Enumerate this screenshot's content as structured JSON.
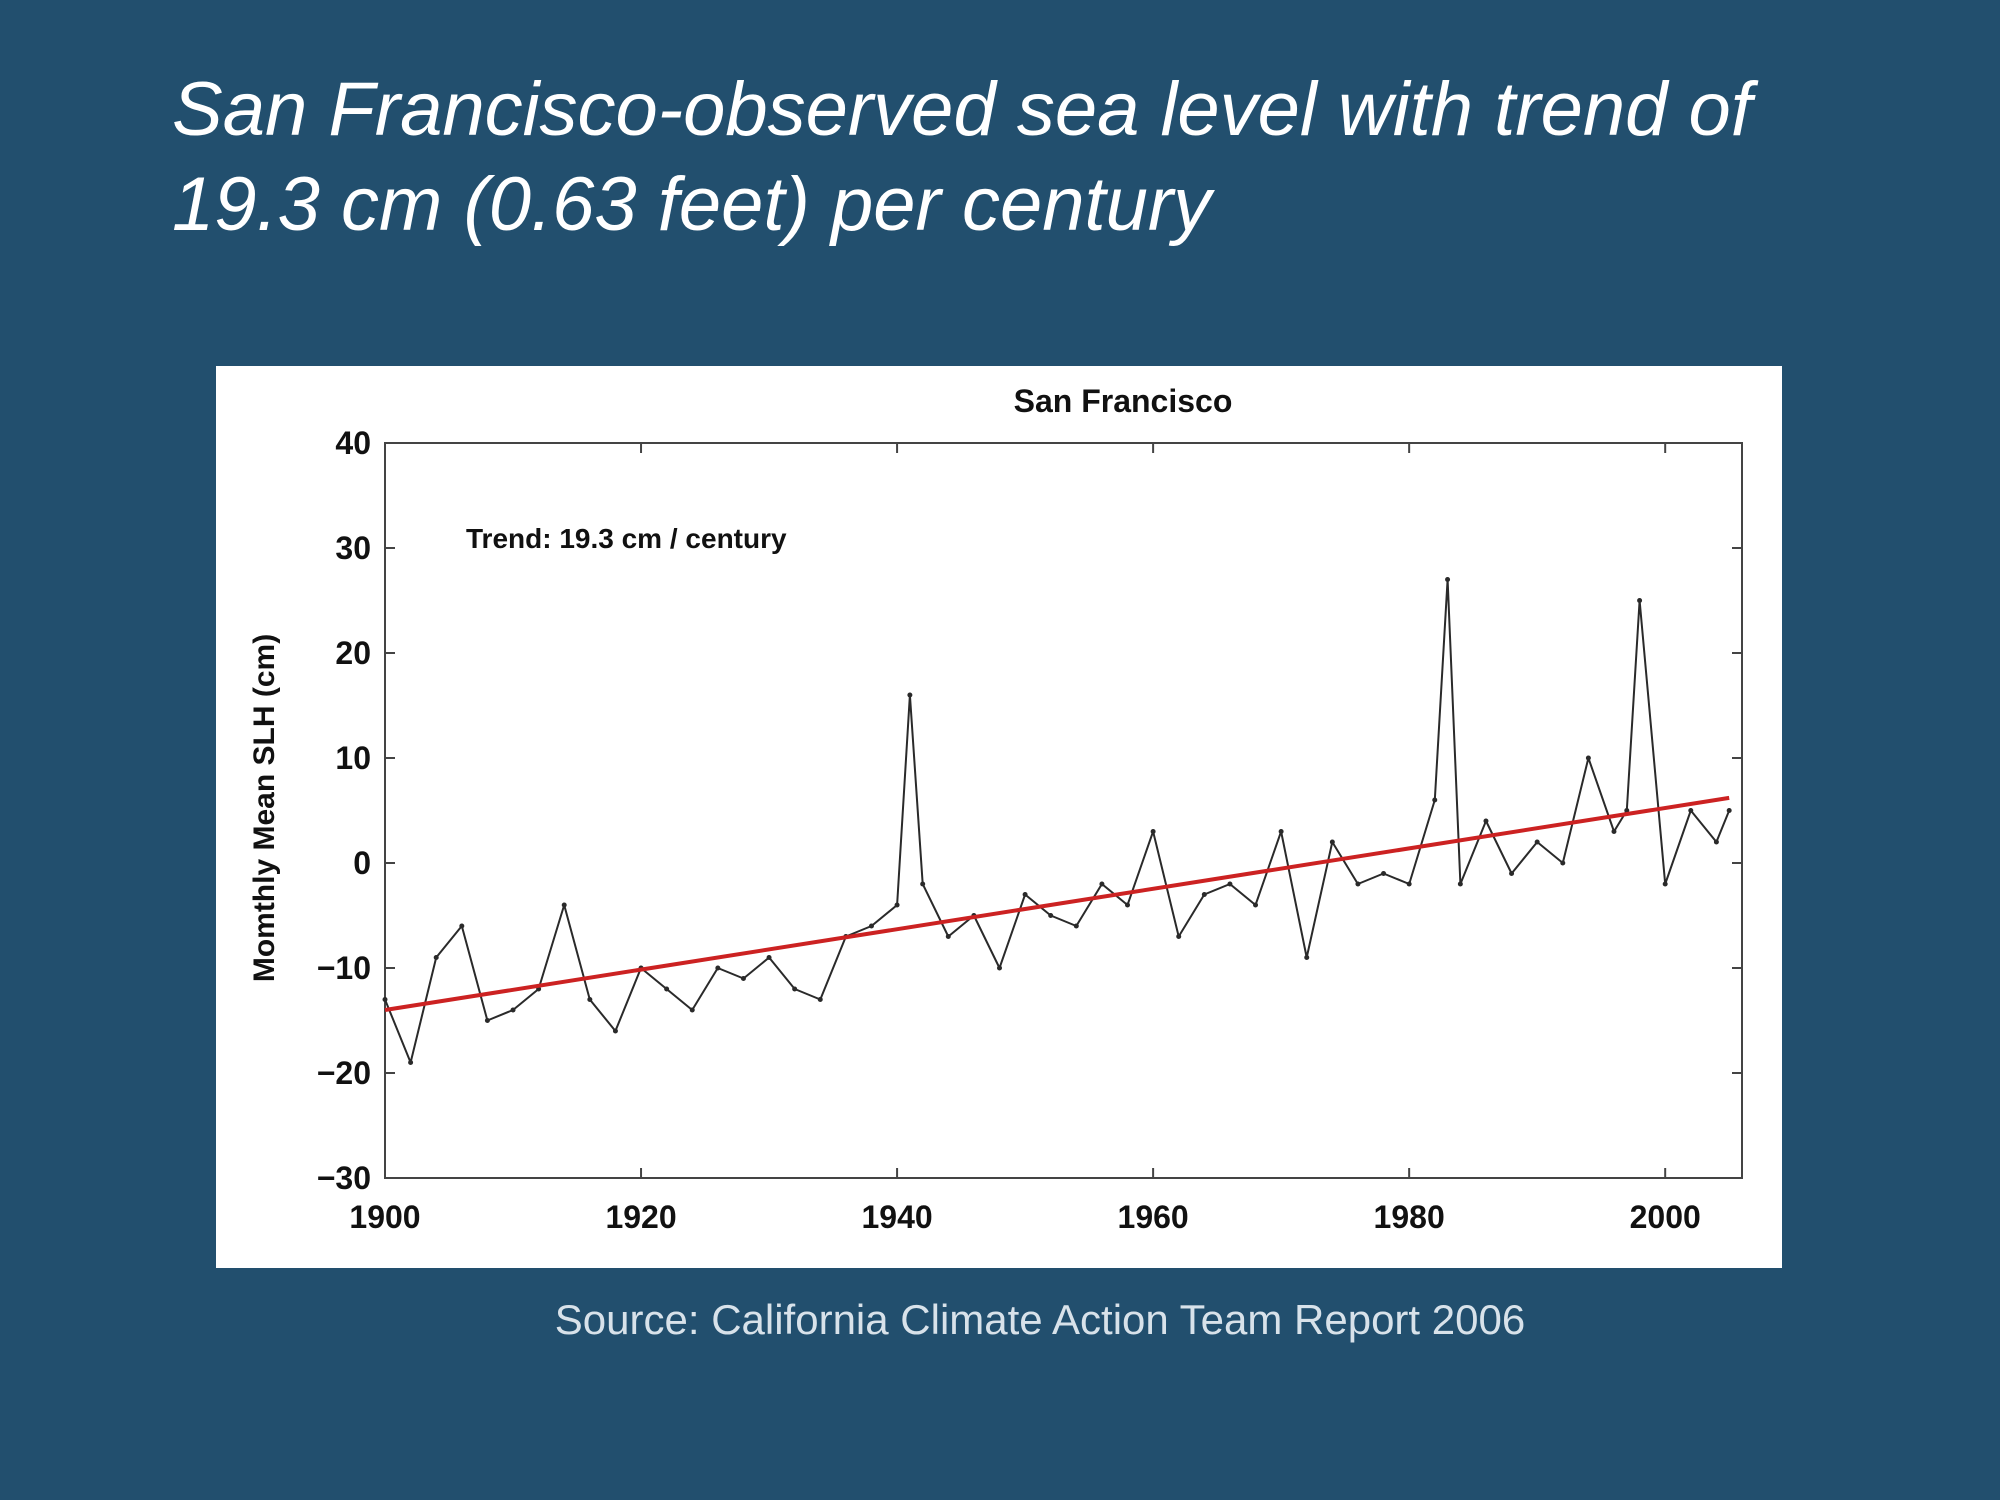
{
  "slide": {
    "title_line1": "San Francisco-observed sea level with trend of",
    "title_line2": "19.3 cm (0.63 feet) per century",
    "source": "Source: California Climate Action Team Report 2006"
  },
  "chart_data": {
    "type": "line",
    "title": "San Francisco",
    "ylabel": "Momthly Mean SLH (cm)",
    "xlabel": "",
    "annotation": "Trend: 19.3 cm / century",
    "xlim": [
      1900,
      2006
    ],
    "ylim": [
      -30,
      40
    ],
    "x_ticks": [
      1900,
      1920,
      1940,
      1960,
      1980,
      2000
    ],
    "y_ticks": [
      -30,
      -20,
      -10,
      0,
      10,
      20,
      30,
      40
    ],
    "grid": false,
    "colors": {
      "series": "#2a2a2a",
      "trend": "#cc2222"
    },
    "series": [
      {
        "name": "",
        "x": [
          1900,
          1902,
          1904,
          1906,
          1908,
          1910,
          1912,
          1914,
          1916,
          1918,
          1920,
          1922,
          1924,
          1926,
          1928,
          1930,
          1932,
          1934,
          1936,
          1938,
          1940,
          1941,
          1942,
          1944,
          1946,
          1948,
          1950,
          1952,
          1954,
          1956,
          1958,
          1960,
          1962,
          1964,
          1966,
          1968,
          1970,
          1972,
          1974,
          1976,
          1978,
          1980,
          1982,
          1983,
          1984,
          1986,
          1988,
          1990,
          1992,
          1994,
          1996,
          1997,
          1998,
          2000,
          2002,
          2004,
          2005
        ],
        "y": [
          -13,
          -19,
          -9,
          -6,
          -15,
          -14,
          -12,
          -4,
          -13,
          -16,
          -10,
          -12,
          -14,
          -10,
          -11,
          -9,
          -12,
          -13,
          -7,
          -6,
          -4,
          16,
          -2,
          -7,
          -5,
          -10,
          -3,
          -5,
          -6,
          -2,
          -4,
          3,
          -7,
          -3,
          -2,
          -4,
          3,
          -9,
          2,
          -2,
          -1,
          -2,
          6,
          27,
          -2,
          4,
          -1,
          2,
          0,
          10,
          3,
          5,
          25,
          -2,
          5,
          2,
          5
        ]
      },
      {
        "name": "Trend",
        "x": [
          1900,
          2005
        ],
        "y": [
          -14,
          6.2
        ]
      }
    ]
  }
}
